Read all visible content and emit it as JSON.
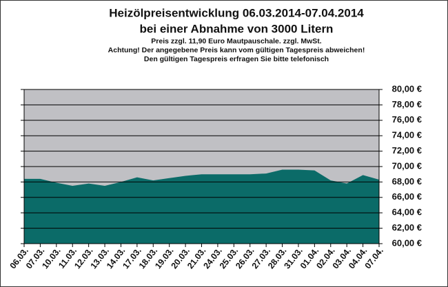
{
  "chart_data": {
    "type": "area",
    "title": [
      "Heizölpreisentwicklung 06.03.2014-07.04.2014",
      "bei einer Abnahme von 3000 Litern"
    ],
    "notes": [
      "Preis zzgl. 11,90 Euro Mautpauschale. zzgl. MwSt.",
      "Achtung! Der angegebene Preis kann vom gültigen Tagespreis abweichen!",
      "Den gültigen Tagespreis erfragen Sie bitte telefonisch"
    ],
    "categories": [
      "06.03.",
      "07.03.",
      "10.03.",
      "11.03.",
      "12.03.",
      "13.03.",
      "14.03.",
      "17.03.",
      "18.03.",
      "19.03.",
      "20.03.",
      "21.03.",
      "24.03.",
      "25.03.",
      "26.03.",
      "27.03.",
      "28.03.",
      "31.03.",
      "01.04.",
      "02.04.",
      "03.04.",
      "04.04.",
      "07.04."
    ],
    "values": [
      68.4,
      68.4,
      67.9,
      67.5,
      67.8,
      67.5,
      68.0,
      68.6,
      68.2,
      68.5,
      68.8,
      69.0,
      69.0,
      69.0,
      69.0,
      69.1,
      69.6,
      69.6,
      69.5,
      68.2,
      67.8,
      68.9,
      68.3
    ],
    "color": "#0b6b68",
    "plot_background": "#c0c0c4",
    "grid": true,
    "ylim": [
      60,
      80
    ],
    "yticks": [
      {
        "value": 60,
        "label": "60,00 €"
      },
      {
        "value": 62,
        "label": "62,00 €"
      },
      {
        "value": 64,
        "label": "64,00 €"
      },
      {
        "value": 66,
        "label": "66,00 €"
      },
      {
        "value": 68,
        "label": "68,00 €"
      },
      {
        "value": 70,
        "label": "70,00 €"
      },
      {
        "value": 72,
        "label": "72,00 €"
      },
      {
        "value": 74,
        "label": "74,00 €"
      },
      {
        "value": 76,
        "label": "76,00 €"
      },
      {
        "value": 78,
        "label": "78,00 €"
      },
      {
        "value": 80,
        "label": "80,00 €"
      }
    ]
  }
}
